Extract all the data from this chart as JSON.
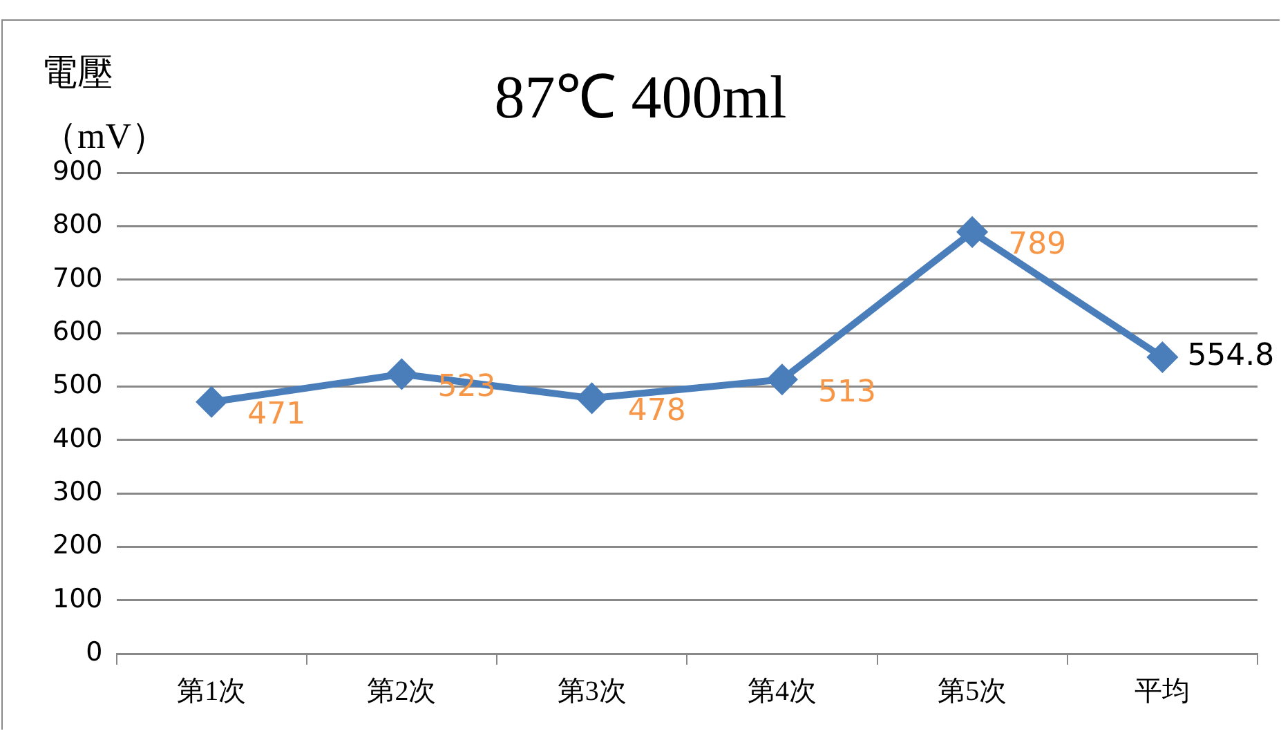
{
  "chart_data": {
    "type": "line",
    "title": "87℃ 400ml",
    "ylabel": "電壓（mV）",
    "categories": [
      "第1次",
      "第2次",
      "第3次",
      "第4次",
      "第5次",
      "平均"
    ],
    "series": [
      {
        "color": "#4a7ebb",
        "values": [
          471,
          523,
          478,
          513,
          789,
          554.8
        ],
        "value_labels": [
          "471",
          "523",
          "478",
          "513",
          "789",
          null
        ]
      }
    ],
    "annotations": [
      {
        "text": "554.8",
        "x": "平均",
        "y": 554.8
      }
    ],
    "ylim": [
      0,
      900
    ],
    "yticks": [
      0,
      100,
      200,
      300,
      400,
      500,
      600,
      700,
      800,
      900
    ],
    "grid": "y",
    "legend": false,
    "marker": "diamond",
    "line_style": "solid"
  }
}
